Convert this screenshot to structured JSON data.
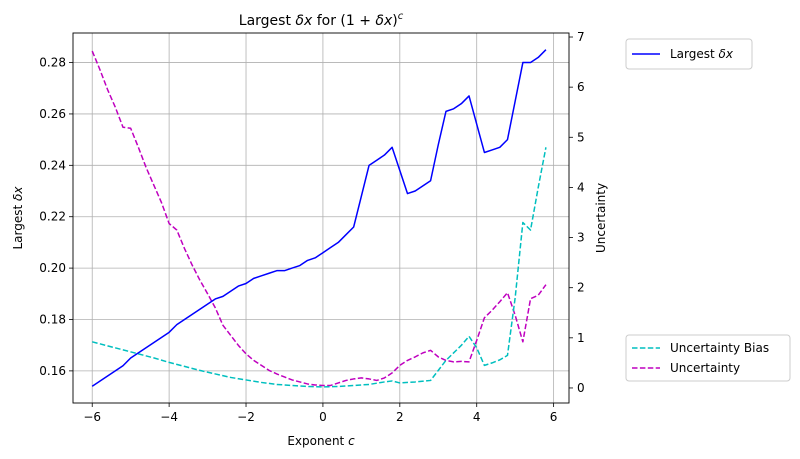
{
  "chart_data": {
    "type": "line",
    "title": {
      "pre": "Largest ",
      "it1": "δx",
      "mid": " for (1 + ",
      "it2": "δx",
      "post": ")",
      "sup": "c"
    },
    "xlabel": {
      "pre": "Exponent ",
      "it": "c"
    },
    "ylabel_left": {
      "pre": "Largest ",
      "it": "δx"
    },
    "ylabel_right": "Uncertainty",
    "xlim": [
      -6.5,
      6.4
    ],
    "ylim_left": [
      0.1475,
      0.2915
    ],
    "ylim_right": [
      -0.3,
      7.08
    ],
    "x_ticks": [
      -6,
      -4,
      -2,
      0,
      2,
      4,
      6
    ],
    "x_tick_labels": [
      "−6",
      "−4",
      "−2",
      "0",
      "2",
      "4",
      "6"
    ],
    "y_left_ticks": [
      0.16,
      0.18,
      0.2,
      0.22,
      0.24,
      0.26,
      0.28
    ],
    "y_left_tick_labels": [
      "0.16",
      "0.18",
      "0.20",
      "0.22",
      "0.24",
      "0.26",
      "0.28"
    ],
    "y_right_ticks": [
      0,
      1,
      2,
      3,
      4,
      5,
      6,
      7
    ],
    "y_right_tick_labels": [
      "0",
      "1",
      "2",
      "3",
      "4",
      "5",
      "6",
      "7"
    ],
    "grid": true,
    "colors": {
      "largest": "#0000ff",
      "bias": "#00bfbf",
      "uncertainty": "#bf00bf",
      "grid": "#b0b0b0"
    },
    "legend_top": {
      "placement": "outside top-right",
      "entry": {
        "pre": "Largest ",
        "it": "δx"
      }
    },
    "legend_bottom": {
      "placement": "outside bottom-right",
      "entries": [
        "Uncertainty Bias",
        "Uncertainty"
      ]
    },
    "series": [
      {
        "key": "largest",
        "axis": "left",
        "style": "solid",
        "x": [
          -6.0,
          -5.8,
          -5.6,
          -5.4,
          -5.2,
          -5.0,
          -4.8,
          -4.6,
          -4.4,
          -4.2,
          -4.0,
          -3.8,
          -3.6,
          -3.4,
          -3.2,
          -3.0,
          -2.8,
          -2.6,
          -2.4,
          -2.2,
          -2.0,
          -1.8,
          -1.6,
          -1.4,
          -1.2,
          -1.0,
          -0.8,
          -0.6,
          -0.4,
          -0.2,
          0.0,
          0.2,
          0.4,
          0.6,
          0.8,
          1.0,
          1.2,
          1.4,
          1.6,
          1.8,
          2.0,
          2.2,
          2.4,
          2.6,
          2.8,
          3.0,
          3.2,
          3.4,
          3.6,
          3.8,
          4.0,
          4.2,
          4.4,
          4.6,
          4.8,
          5.0,
          5.2,
          5.4,
          5.6,
          5.8
        ],
        "y": [
          0.154,
          0.156,
          0.158,
          0.16,
          0.162,
          0.165,
          0.167,
          0.169,
          0.171,
          0.173,
          0.175,
          0.178,
          0.18,
          0.182,
          0.184,
          0.186,
          0.188,
          0.189,
          0.191,
          0.193,
          0.194,
          0.196,
          0.197,
          0.198,
          0.199,
          0.199,
          0.2,
          0.201,
          0.203,
          0.204,
          0.206,
          0.208,
          0.21,
          0.213,
          0.216,
          0.228,
          0.24,
          0.242,
          0.244,
          0.247,
          0.238,
          0.229,
          0.23,
          0.232,
          0.234,
          0.248,
          0.261,
          0.262,
          0.264,
          0.267,
          0.256,
          0.245,
          0.246,
          0.247,
          0.25,
          0.265,
          0.28,
          0.28,
          0.282,
          0.285
        ]
      },
      {
        "key": "bias",
        "axis": "right",
        "style": "dashed",
        "x": [
          -6.0,
          -5.6,
          -5.2,
          -4.8,
          -4.4,
          -4.0,
          -3.6,
          -3.2,
          -2.8,
          -2.4,
          -2.0,
          -1.6,
          -1.2,
          -0.8,
          -0.4,
          0.0,
          0.4,
          0.8,
          1.2,
          1.6,
          1.8,
          2.0,
          2.4,
          2.8,
          3.2,
          3.6,
          3.8,
          4.0,
          4.2,
          4.4,
          4.6,
          4.8,
          5.0,
          5.2,
          5.4,
          5.6,
          5.8
        ],
        "y": [
          0.92,
          0.84,
          0.76,
          0.68,
          0.6,
          0.51,
          0.43,
          0.35,
          0.28,
          0.21,
          0.16,
          0.11,
          0.07,
          0.05,
          0.03,
          0.02,
          0.03,
          0.05,
          0.07,
          0.12,
          0.14,
          0.1,
          0.12,
          0.15,
          0.55,
          0.85,
          1.03,
          0.8,
          0.45,
          0.5,
          0.56,
          0.65,
          1.8,
          3.3,
          3.15,
          4.0,
          4.8
        ]
      },
      {
        "key": "uncertainty",
        "axis": "right",
        "style": "dashed",
        "x": [
          -6.0,
          -5.8,
          -5.6,
          -5.4,
          -5.2,
          -5.0,
          -4.8,
          -4.6,
          -4.4,
          -4.2,
          -4.0,
          -3.8,
          -3.6,
          -3.4,
          -3.2,
          -3.0,
          -2.8,
          -2.6,
          -2.4,
          -2.2,
          -2.0,
          -1.8,
          -1.6,
          -1.4,
          -1.2,
          -1.0,
          -0.8,
          -0.6,
          -0.4,
          -0.2,
          0.0,
          0.2,
          0.4,
          0.6,
          0.8,
          1.0,
          1.2,
          1.4,
          1.6,
          1.8,
          2.0,
          2.2,
          2.4,
          2.6,
          2.8,
          3.0,
          3.2,
          3.4,
          3.6,
          3.8,
          4.0,
          4.2,
          4.4,
          4.6,
          4.8,
          5.0,
          5.2,
          5.4,
          5.6,
          5.8
        ],
        "y": [
          6.72,
          6.35,
          5.95,
          5.6,
          5.2,
          5.18,
          4.8,
          4.4,
          4.05,
          3.7,
          3.28,
          3.15,
          2.78,
          2.45,
          2.15,
          1.88,
          1.6,
          1.25,
          1.05,
          0.85,
          0.68,
          0.55,
          0.45,
          0.35,
          0.28,
          0.22,
          0.16,
          0.12,
          0.08,
          0.06,
          0.05,
          0.05,
          0.1,
          0.15,
          0.18,
          0.2,
          0.18,
          0.15,
          0.2,
          0.3,
          0.45,
          0.55,
          0.62,
          0.7,
          0.75,
          0.62,
          0.55,
          0.52,
          0.53,
          0.52,
          0.95,
          1.4,
          1.55,
          1.72,
          1.9,
          1.45,
          0.92,
          1.78,
          1.85,
          2.06
        ]
      }
    ]
  }
}
